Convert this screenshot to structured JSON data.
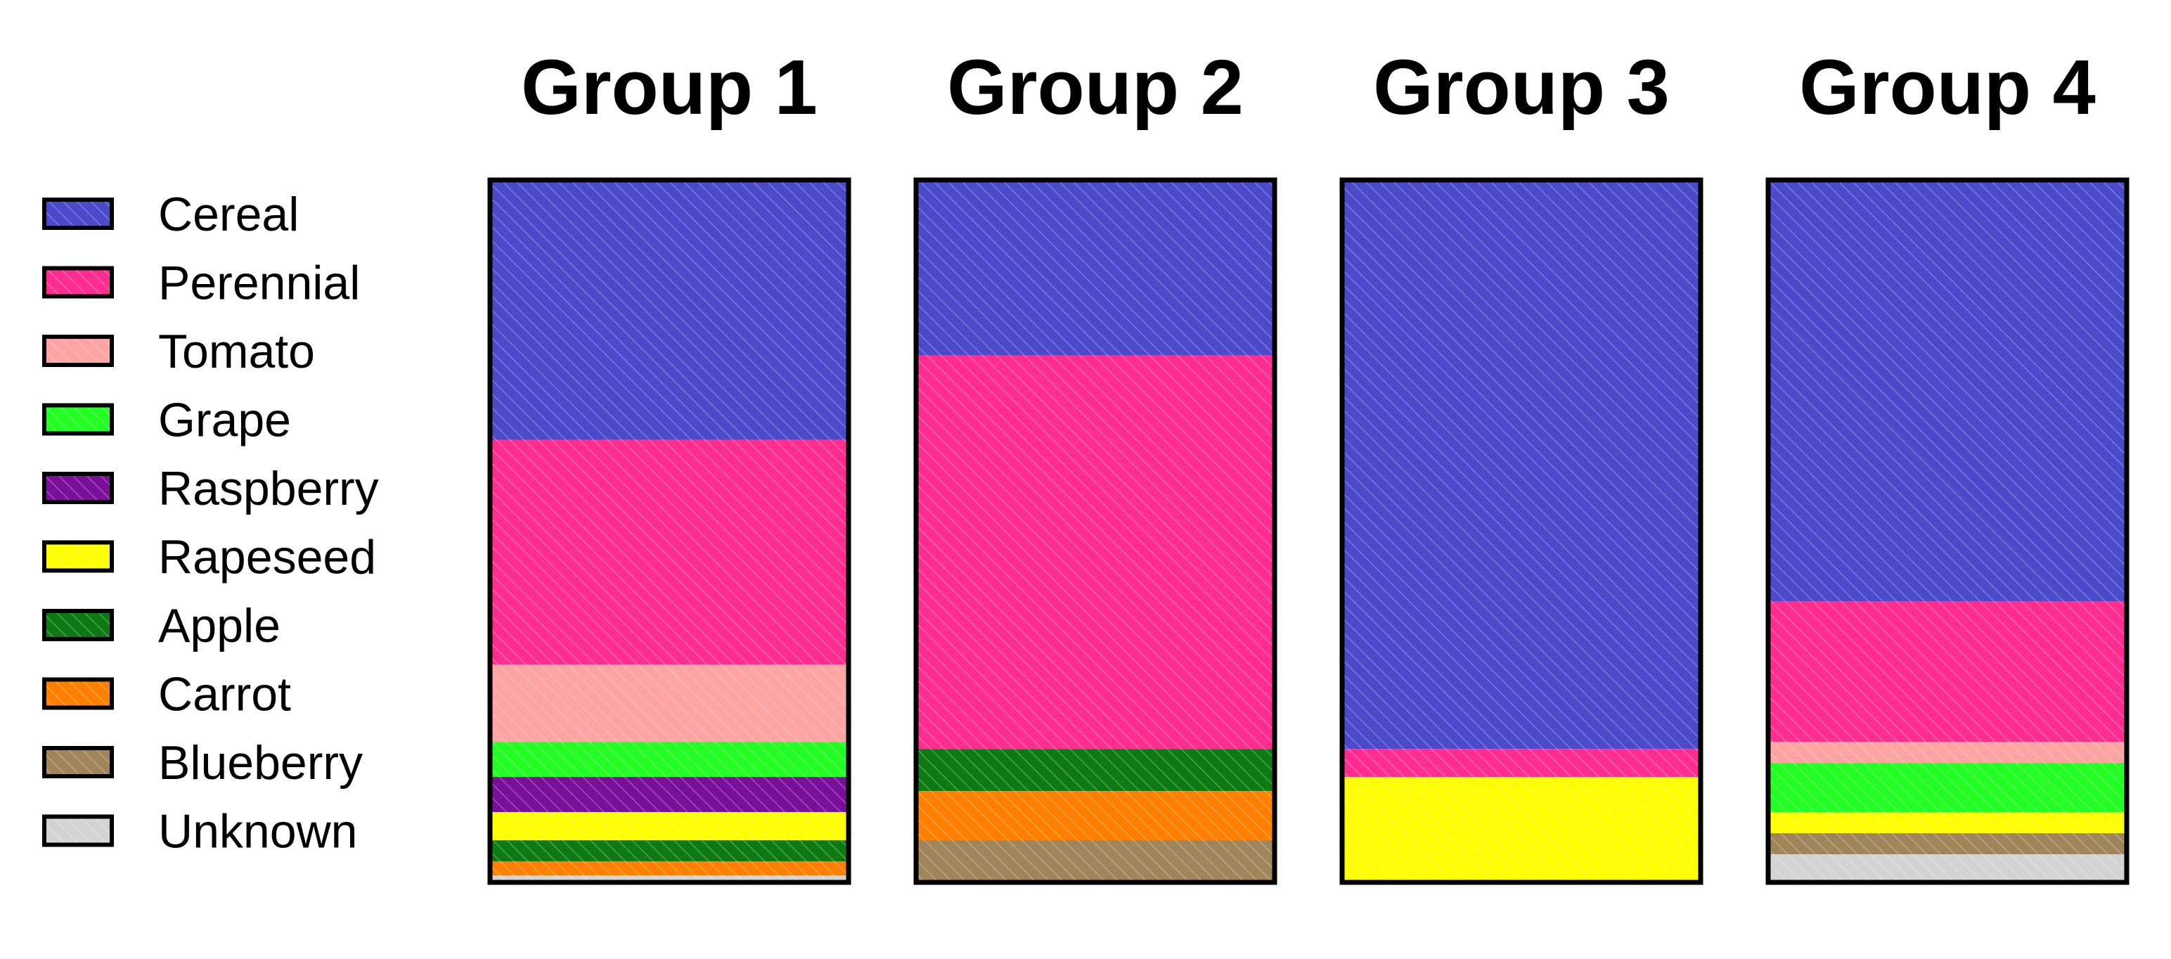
{
  "chart_data": {
    "type": "bar",
    "stacked": true,
    "normalized": true,
    "categories": [
      "Group 1",
      "Group 2",
      "Group 3",
      "Group 4"
    ],
    "hatched": true,
    "legend_position": "left",
    "series": [
      {
        "name": "Cereal",
        "color": "#4a4acb",
        "values": [
          37,
          25,
          81,
          60
        ]
      },
      {
        "name": "Perennial",
        "color": "#ff2d8f",
        "values": [
          32,
          56,
          4,
          20
        ]
      },
      {
        "name": "Tomato",
        "color": "#ffa3a3",
        "values": [
          11,
          0,
          0,
          3
        ]
      },
      {
        "name": "Grape",
        "color": "#22ff22",
        "values": [
          5,
          0,
          0,
          7
        ]
      },
      {
        "name": "Raspberry",
        "color": "#7a0f9a",
        "values": [
          5,
          0,
          0,
          0
        ]
      },
      {
        "name": "Rapeseed",
        "color": "#ffff00",
        "values": [
          4,
          0,
          15,
          3
        ]
      },
      {
        "name": "Apple",
        "color": "#0e7a14",
        "values": [
          3,
          6,
          0,
          0
        ]
      },
      {
        "name": "Carrot",
        "color": "#ff7f00",
        "values": [
          2,
          7,
          0,
          0
        ]
      },
      {
        "name": "Blueberry",
        "color": "#a0845a",
        "values": [
          0,
          6,
          0,
          3
        ]
      },
      {
        "name": "Unknown",
        "color": "#d3d3d3",
        "values": [
          1,
          0,
          0,
          4
        ]
      }
    ]
  }
}
